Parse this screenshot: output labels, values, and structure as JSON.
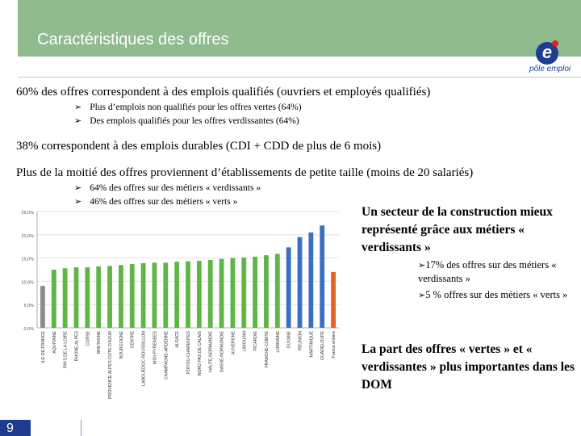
{
  "slide": {
    "title": "Caractéristiques des offres",
    "logo_text": "pôle emploi",
    "page_number": "9"
  },
  "stats": {
    "line1": "60% des offres correspondent à des emplois qualifiés (ouvriers et employés qualifiés)",
    "line1_bullets": [
      "Plus d’emplois non qualifiés pour les offres vertes (64%)",
      "Des emplois qualifiés pour les offres verdissantes (64%)"
    ],
    "line2": "38% correspondent à des emplois durables (CDI + CDD de plus de 6 mois)",
    "line3": "Plus de la moitié des offres proviennent d’établissements de petite taille (moins de 20 salariés)",
    "line3_bullets": [
      "64% des offres sur des métiers « verdissants »",
      "46% des offres sur des métiers « verts »"
    ]
  },
  "right_panel": {
    "heading": "Un secteur de la construction mieux représenté grâce aux métiers « verdissants »",
    "bullets": [
      "17% des offres sur des métiers « verdissants »",
      "5 % offres sur des métiers « verts »"
    ],
    "closing": "La part des offres « vertes » et « verdissantes » plus importantes dans les DOM"
  },
  "chart_data": {
    "type": "bar",
    "categories": [
      "ILE-DE-FRANCE",
      "AQUITAINE",
      "PAYS DE LA LOIRE",
      "RHONE-ALPES",
      "CORSE",
      "BRETAGNE",
      "PROVENCE-ALPES-COTE D'AZUR",
      "BOURGOGNE",
      "CENTRE",
      "LANGUEDOC-ROUSSILLON",
      "MIDI-PYRENEES",
      "CHAMPAGNE-ARDENNE",
      "ALSACE",
      "POITOU-CHARENTES",
      "NORD PAS DE CALAIS",
      "HAUTE-NORMANDIE",
      "BASSE-NORMANDIE",
      "AUVERGNE",
      "LIMOUSIN",
      "PICARDIE",
      "FRANCHE-COMTE",
      "LORRAINE",
      "GUYANE",
      "REUNION",
      "MARTINIQUE",
      "GUADELOUPE",
      "France entière"
    ],
    "values": [
      9.0,
      12.5,
      12.8,
      13.0,
      13.0,
      13.2,
      13.3,
      13.5,
      13.7,
      13.9,
      14.0,
      14.0,
      14.2,
      14.3,
      14.4,
      14.6,
      14.8,
      15.0,
      15.1,
      15.3,
      15.6,
      15.9,
      17.3,
      19.5,
      20.5,
      22.0,
      12.0
    ],
    "colors": {
      "first": "#8c8c8c",
      "green": "#5fb545",
      "blue": "#3b6fc4",
      "national": "#e4622c"
    },
    "ylim": [
      0,
      25
    ],
    "yticks": [
      "0,0%",
      "5,0%",
      "10,0%",
      "15,0%",
      "20,0%",
      "25,0%"
    ],
    "xlabel": "",
    "ylabel": "",
    "grid": true
  }
}
